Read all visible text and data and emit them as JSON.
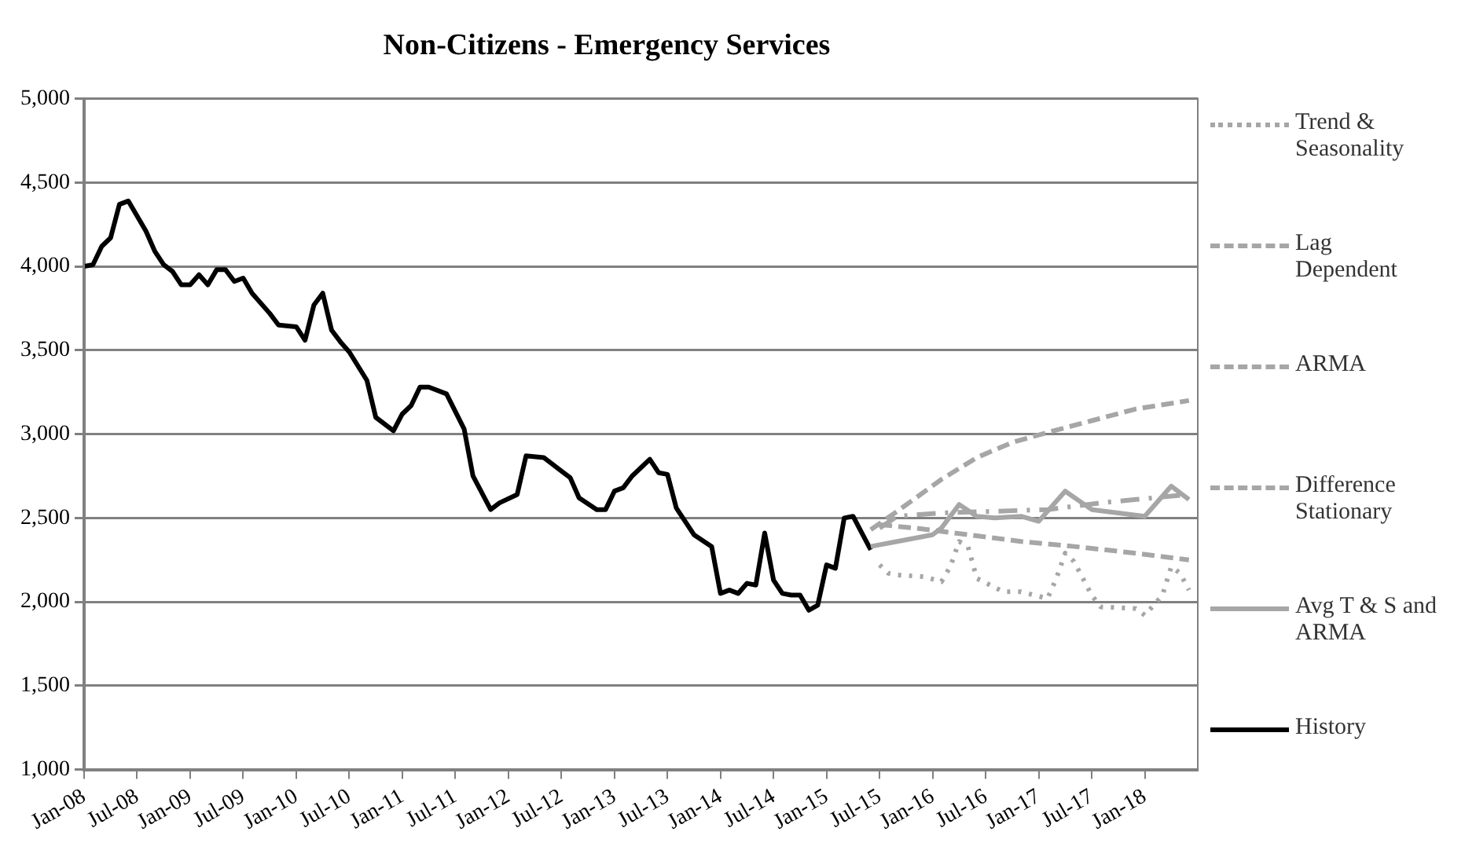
{
  "chart_data": {
    "type": "line",
    "title": "Non-Citizens - Emergency Services",
    "xlim": [
      "2008-01",
      "2018-07"
    ],
    "xticks": [
      {
        "value": "2008-01",
        "label": "Jan-08"
      },
      {
        "value": "2008-07",
        "label": "Jul-08"
      },
      {
        "value": "2009-01",
        "label": "Jan-09"
      },
      {
        "value": "2009-07",
        "label": "Jul-09"
      },
      {
        "value": "2010-01",
        "label": "Jan-10"
      },
      {
        "value": "2010-07",
        "label": "Jul-10"
      },
      {
        "value": "2011-01",
        "label": "Jan-11"
      },
      {
        "value": "2011-07",
        "label": "Jul-11"
      },
      {
        "value": "2012-01",
        "label": "Jan-12"
      },
      {
        "value": "2012-07",
        "label": "Jul-12"
      },
      {
        "value": "2013-01",
        "label": "Jan-13"
      },
      {
        "value": "2013-07",
        "label": "Jul-13"
      },
      {
        "value": "2014-01",
        "label": "Jan-14"
      },
      {
        "value": "2014-07",
        "label": "Jul-14"
      },
      {
        "value": "2015-01",
        "label": "Jan-15"
      },
      {
        "value": "2015-07",
        "label": "Jul-15"
      },
      {
        "value": "2016-01",
        "label": "Jan-16"
      },
      {
        "value": "2016-07",
        "label": "Jul-16"
      },
      {
        "value": "2017-01",
        "label": "Jan-17"
      },
      {
        "value": "2017-07",
        "label": "Jul-17"
      },
      {
        "value": "2018-01",
        "label": "Jan-18"
      }
    ],
    "ylim": [
      1000,
      5000
    ],
    "yticks": [
      {
        "value": 1000,
        "label": "1,000"
      },
      {
        "value": 1500,
        "label": "1,500"
      },
      {
        "value": 2000,
        "label": "2,000"
      },
      {
        "value": 2500,
        "label": "2,500"
      },
      {
        "value": 3000,
        "label": "3,000"
      },
      {
        "value": 3500,
        "label": "3,500"
      },
      {
        "value": 4000,
        "label": "4,000"
      },
      {
        "value": 4500,
        "label": "4,500"
      },
      {
        "value": 5000,
        "label": "5,000"
      }
    ],
    "grid": "y",
    "legend": "right",
    "marker": "none",
    "series": [
      {
        "name": "Trend & Seasonality",
        "color": "#a6a6a6",
        "line_style": "dotted",
        "x": [
          "2015-07",
          "2015-08",
          "2015-09",
          "2015-12",
          "2016-02",
          "2016-03",
          "2016-04",
          "2016-05",
          "2016-06",
          "2016-09",
          "2016-11",
          "2017-02",
          "2017-03",
          "2017-04",
          "2017-05",
          "2017-07",
          "2017-08",
          "2017-12",
          "2018-01",
          "2018-03",
          "2018-04",
          "2018-05",
          "2018-06"
        ],
        "values": [
          2220,
          2170,
          2160,
          2150,
          2120,
          2210,
          2360,
          2330,
          2140,
          2060,
          2060,
          2020,
          2140,
          2290,
          2240,
          2040,
          1970,
          1960,
          1920,
          2040,
          2210,
          2170,
          2070
        ]
      },
      {
        "name": "Lag Dependent",
        "color": "#a6a6a6",
        "line_style": "dashdot",
        "x": [
          "2015-07",
          "2015-09",
          "2016-02",
          "2016-08",
          "2017-02",
          "2017-08",
          "2017-12",
          "2018-06"
        ],
        "values": [
          2440,
          2510,
          2530,
          2540,
          2550,
          2590,
          2610,
          2640
        ]
      },
      {
        "name": "ARMA",
        "color": "#a6a6a6",
        "line_style": "dashed",
        "x": [
          "2015-06",
          "2015-09",
          "2016-02",
          "2016-06",
          "2016-10",
          "2017-02",
          "2017-07",
          "2017-12",
          "2018-06"
        ],
        "values": [
          2430,
          2540,
          2730,
          2860,
          2950,
          3010,
          3080,
          3150,
          3200
        ]
      },
      {
        "name": "Difference Stationary",
        "color": "#a6a6a6",
        "line_style": "dashed",
        "x": [
          "2015-07",
          "2015-11",
          "2016-05",
          "2016-11",
          "2017-05",
          "2017-12",
          "2018-06"
        ],
        "values": [
          2460,
          2440,
          2400,
          2360,
          2330,
          2290,
          2250
        ]
      },
      {
        "name": "Avg T & S and ARMA",
        "color": "#a6a6a6",
        "line_style": "solid",
        "x": [
          "2015-06",
          "2015-09",
          "2016-01",
          "2016-02",
          "2016-04",
          "2016-06",
          "2016-08",
          "2016-11",
          "2017-01",
          "2017-04",
          "2017-07",
          "2017-10",
          "2018-01",
          "2018-04",
          "2018-06"
        ],
        "values": [
          2330,
          2360,
          2400,
          2440,
          2580,
          2510,
          2500,
          2510,
          2480,
          2660,
          2550,
          2530,
          2510,
          2690,
          2610
        ]
      },
      {
        "name": "History",
        "color": "#000000",
        "line_style": "solid",
        "x": [
          "2008-01",
          "2008-02",
          "2008-03",
          "2008-04",
          "2008-05",
          "2008-06",
          "2008-08",
          "2008-09",
          "2008-10",
          "2008-11",
          "2008-12",
          "2009-01",
          "2009-02",
          "2009-03",
          "2009-04",
          "2009-05",
          "2009-06",
          "2009-07",
          "2009-08",
          "2009-10",
          "2009-11",
          "2010-01",
          "2010-02",
          "2010-03",
          "2010-04",
          "2010-05",
          "2010-06",
          "2010-07",
          "2010-09",
          "2010-10",
          "2010-12",
          "2011-01",
          "2011-02",
          "2011-03",
          "2011-04",
          "2011-06",
          "2011-08",
          "2011-09",
          "2011-11",
          "2011-12",
          "2012-02",
          "2012-03",
          "2012-05",
          "2012-07",
          "2012-08",
          "2012-09",
          "2012-11",
          "2012-12",
          "2013-01",
          "2013-02",
          "2013-03",
          "2013-05",
          "2013-06",
          "2013-07",
          "2013-08",
          "2013-10",
          "2013-12",
          "2014-01",
          "2014-02",
          "2014-03",
          "2014-04",
          "2014-05",
          "2014-06",
          "2014-07",
          "2014-08",
          "2014-09",
          "2014-10",
          "2014-11",
          "2014-12",
          "2015-01",
          "2015-02",
          "2015-03",
          "2015-04",
          "2015-05",
          "2015-06"
        ],
        "values": [
          4000,
          4010,
          4120,
          4170,
          4370,
          4390,
          4210,
          4090,
          4010,
          3970,
          3890,
          3890,
          3950,
          3890,
          3980,
          3980,
          3910,
          3930,
          3840,
          3720,
          3650,
          3640,
          3560,
          3770,
          3840,
          3620,
          3550,
          3490,
          3320,
          3100,
          3020,
          3120,
          3170,
          3280,
          3280,
          3240,
          3030,
          2750,
          2550,
          2590,
          2640,
          2870,
          2860,
          2780,
          2740,
          2620,
          2550,
          2550,
          2660,
          2680,
          2750,
          2850,
          2770,
          2760,
          2560,
          2400,
          2330,
          2050,
          2070,
          2050,
          2110,
          2100,
          2410,
          2130,
          2050,
          2040,
          2040,
          1950,
          1980,
          2220,
          2200,
          2500,
          2510,
          2410,
          2310
        ]
      }
    ]
  }
}
